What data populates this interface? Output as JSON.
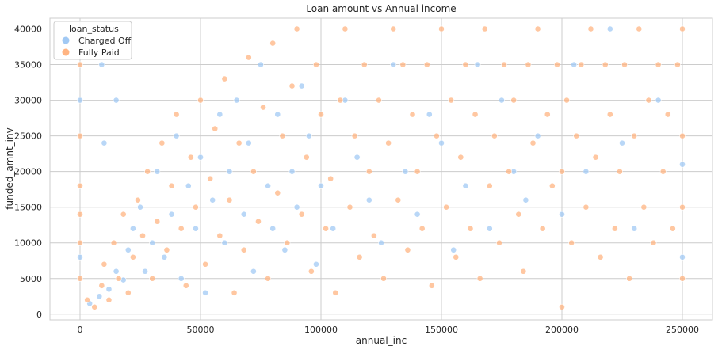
{
  "chart_data": {
    "type": "scatter",
    "title": "Loan amount vs Annual income",
    "xlabel": "annual_inc",
    "ylabel": "funded_amnt_inv",
    "xlim": [
      -12500,
      262500
    ],
    "ylim": [
      -800,
      41500
    ],
    "xticks": [
      0,
      50000,
      100000,
      150000,
      200000,
      250000
    ],
    "xtick_labels": [
      "0",
      "50000",
      "100000",
      "150000",
      "200000",
      "250000"
    ],
    "yticks": [
      0,
      5000,
      10000,
      15000,
      20000,
      25000,
      30000,
      35000,
      40000
    ],
    "ytick_labels": [
      "0",
      "5000",
      "10000",
      "15000",
      "20000",
      "25000",
      "30000",
      "35000",
      "40000"
    ],
    "grid": true,
    "legend": {
      "title": "loan_status",
      "placement": "top-left"
    },
    "series": [
      {
        "name": "Charged Off",
        "color": "#a1c9f4",
        "points": [
          [
            4000,
            1500
          ],
          [
            8000,
            2500
          ],
          [
            12000,
            3500
          ],
          [
            15000,
            6000
          ],
          [
            18000,
            4800
          ],
          [
            20000,
            9000
          ],
          [
            22000,
            12000
          ],
          [
            25000,
            15000
          ],
          [
            27000,
            6000
          ],
          [
            30000,
            10000
          ],
          [
            32000,
            20000
          ],
          [
            35000,
            8000
          ],
          [
            38000,
            14000
          ],
          [
            40000,
            25000
          ],
          [
            42000,
            5000
          ],
          [
            45000,
            18000
          ],
          [
            48000,
            12000
          ],
          [
            50000,
            22000
          ],
          [
            52000,
            3000
          ],
          [
            55000,
            16000
          ],
          [
            58000,
            28000
          ],
          [
            60000,
            10000
          ],
          [
            62000,
            20000
          ],
          [
            65000,
            30000
          ],
          [
            68000,
            14000
          ],
          [
            70000,
            24000
          ],
          [
            72000,
            6000
          ],
          [
            75000,
            35000
          ],
          [
            78000,
            18000
          ],
          [
            80000,
            12000
          ],
          [
            82000,
            28000
          ],
          [
            85000,
            9000
          ],
          [
            88000,
            20000
          ],
          [
            90000,
            15000
          ],
          [
            92000,
            32000
          ],
          [
            95000,
            25000
          ],
          [
            98000,
            7000
          ],
          [
            100000,
            18000
          ],
          [
            105000,
            12000
          ],
          [
            110000,
            30000
          ],
          [
            115000,
            22000
          ],
          [
            120000,
            16000
          ],
          [
            125000,
            10000
          ],
          [
            130000,
            35000
          ],
          [
            135000,
            20000
          ],
          [
            140000,
            14000
          ],
          [
            145000,
            28000
          ],
          [
            150000,
            24000
          ],
          [
            155000,
            9000
          ],
          [
            160000,
            18000
          ],
          [
            165000,
            35000
          ],
          [
            170000,
            12000
          ],
          [
            175000,
            30000
          ],
          [
            180000,
            20000
          ],
          [
            185000,
            16000
          ],
          [
            190000,
            25000
          ],
          [
            200000,
            14000
          ],
          [
            205000,
            35000
          ],
          [
            210000,
            20000
          ],
          [
            220000,
            40000
          ],
          [
            225000,
            24000
          ],
          [
            230000,
            12000
          ],
          [
            240000,
            30000
          ],
          [
            250000,
            8000
          ],
          [
            250000,
            21000
          ],
          [
            0,
            30000
          ],
          [
            0,
            8000
          ],
          [
            10000,
            24000
          ],
          [
            9000,
            35000
          ],
          [
            15000,
            30000
          ]
        ]
      },
      {
        "name": "Fully Paid",
        "color": "#ffb482",
        "points": [
          [
            0,
            35000
          ],
          [
            0,
            25000
          ],
          [
            0,
            18000
          ],
          [
            0,
            14000
          ],
          [
            0,
            10000
          ],
          [
            0,
            5000
          ],
          [
            3000,
            2000
          ],
          [
            6000,
            1000
          ],
          [
            9000,
            4000
          ],
          [
            10000,
            7000
          ],
          [
            12000,
            2000
          ],
          [
            14000,
            10000
          ],
          [
            16000,
            5000
          ],
          [
            18000,
            14000
          ],
          [
            20000,
            3000
          ],
          [
            22000,
            8000
          ],
          [
            24000,
            16000
          ],
          [
            26000,
            11000
          ],
          [
            28000,
            20000
          ],
          [
            30000,
            5000
          ],
          [
            32000,
            13000
          ],
          [
            34000,
            24000
          ],
          [
            36000,
            9000
          ],
          [
            38000,
            18000
          ],
          [
            40000,
            28000
          ],
          [
            42000,
            12000
          ],
          [
            44000,
            4000
          ],
          [
            46000,
            22000
          ],
          [
            48000,
            15000
          ],
          [
            50000,
            30000
          ],
          [
            52000,
            7000
          ],
          [
            54000,
            19000
          ],
          [
            56000,
            26000
          ],
          [
            58000,
            11000
          ],
          [
            60000,
            33000
          ],
          [
            62000,
            16000
          ],
          [
            64000,
            3000
          ],
          [
            66000,
            24000
          ],
          [
            68000,
            9000
          ],
          [
            70000,
            36000
          ],
          [
            72000,
            20000
          ],
          [
            74000,
            13000
          ],
          [
            76000,
            29000
          ],
          [
            78000,
            5000
          ],
          [
            80000,
            38000
          ],
          [
            82000,
            17000
          ],
          [
            84000,
            25000
          ],
          [
            86000,
            10000
          ],
          [
            88000,
            32000
          ],
          [
            90000,
            40000
          ],
          [
            92000,
            14000
          ],
          [
            94000,
            22000
          ],
          [
            96000,
            6000
          ],
          [
            98000,
            35000
          ],
          [
            100000,
            28000
          ],
          [
            102000,
            12000
          ],
          [
            104000,
            19000
          ],
          [
            106000,
            3000
          ],
          [
            108000,
            30000
          ],
          [
            110000,
            40000
          ],
          [
            112000,
            15000
          ],
          [
            114000,
            25000
          ],
          [
            116000,
            8000
          ],
          [
            118000,
            35000
          ],
          [
            120000,
            20000
          ],
          [
            122000,
            11000
          ],
          [
            124000,
            30000
          ],
          [
            126000,
            5000
          ],
          [
            128000,
            24000
          ],
          [
            130000,
            40000
          ],
          [
            132000,
            16000
          ],
          [
            134000,
            35000
          ],
          [
            136000,
            9000
          ],
          [
            138000,
            28000
          ],
          [
            140000,
            20000
          ],
          [
            142000,
            12000
          ],
          [
            144000,
            35000
          ],
          [
            146000,
            4000
          ],
          [
            148000,
            25000
          ],
          [
            150000,
            40000
          ],
          [
            152000,
            15000
          ],
          [
            154000,
            30000
          ],
          [
            156000,
            8000
          ],
          [
            158000,
            22000
          ],
          [
            160000,
            35000
          ],
          [
            162000,
            12000
          ],
          [
            164000,
            28000
          ],
          [
            166000,
            5000
          ],
          [
            168000,
            40000
          ],
          [
            170000,
            18000
          ],
          [
            172000,
            25000
          ],
          [
            174000,
            10000
          ],
          [
            176000,
            35000
          ],
          [
            178000,
            20000
          ],
          [
            180000,
            30000
          ],
          [
            182000,
            14000
          ],
          [
            184000,
            6000
          ],
          [
            186000,
            35000
          ],
          [
            188000,
            24000
          ],
          [
            190000,
            40000
          ],
          [
            192000,
            12000
          ],
          [
            194000,
            28000
          ],
          [
            196000,
            18000
          ],
          [
            198000,
            35000
          ],
          [
            200000,
            1000
          ],
          [
            200000,
            20000
          ],
          [
            202000,
            30000
          ],
          [
            204000,
            10000
          ],
          [
            206000,
            25000
          ],
          [
            208000,
            35000
          ],
          [
            210000,
            15000
          ],
          [
            212000,
            40000
          ],
          [
            214000,
            22000
          ],
          [
            216000,
            8000
          ],
          [
            218000,
            35000
          ],
          [
            220000,
            28000
          ],
          [
            222000,
            12000
          ],
          [
            224000,
            20000
          ],
          [
            226000,
            35000
          ],
          [
            228000,
            5000
          ],
          [
            230000,
            25000
          ],
          [
            232000,
            40000
          ],
          [
            234000,
            15000
          ],
          [
            236000,
            30000
          ],
          [
            238000,
            10000
          ],
          [
            240000,
            35000
          ],
          [
            242000,
            20000
          ],
          [
            244000,
            28000
          ],
          [
            246000,
            12000
          ],
          [
            248000,
            35000
          ],
          [
            250000,
            40000
          ],
          [
            250000,
            25000
          ],
          [
            250000,
            15000
          ],
          [
            250000,
            5000
          ]
        ]
      }
    ]
  }
}
